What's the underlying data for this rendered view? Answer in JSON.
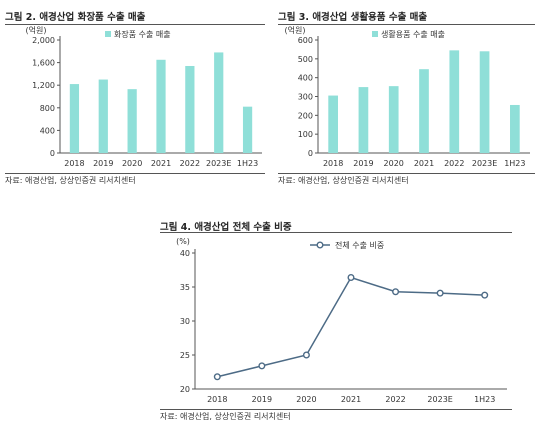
{
  "source_text": "자료: 애경산업, 상상인증권 리서치센터",
  "colors": {
    "bar": "#8fdfd8",
    "line": "#4d6b86",
    "axis": "#555555",
    "rule": "#555555"
  },
  "chart_data": [
    {
      "type": "bar",
      "figure_title": "그림 2. 애경산업 화장품 수출 매출",
      "unit_label": "(억원)",
      "legend": "화장품 수출 매출",
      "legend_position": "top-center",
      "grid": false,
      "categories": [
        "2018",
        "2019",
        "2020",
        "2021",
        "2022",
        "2023E",
        "1H23"
      ],
      "series": [
        {
          "name": "화장품 수출 매출",
          "values": [
            1220,
            1300,
            1130,
            1650,
            1540,
            1780,
            820
          ]
        }
      ],
      "ylim": [
        0,
        2000
      ],
      "yticks": [
        "0",
        "400",
        "800",
        "1,200",
        "1,600",
        "2,000"
      ]
    },
    {
      "type": "bar",
      "figure_title": "그림 3. 애경산업 생활용품 수출 매출",
      "unit_label": "(억원)",
      "legend": "생활용품 수출 매출",
      "legend_position": "top-center",
      "grid": false,
      "categories": [
        "2018",
        "2019",
        "2020",
        "2021",
        "2022",
        "2023E",
        "1H23"
      ],
      "series": [
        {
          "name": "생활용품 수출 매출",
          "values": [
            305,
            350,
            355,
            445,
            545,
            540,
            255
          ]
        }
      ],
      "ylim": [
        0,
        600
      ],
      "yticks": [
        "0",
        "100",
        "200",
        "300",
        "400",
        "500",
        "600"
      ]
    },
    {
      "type": "line",
      "figure_title": "그림 4. 애경산업 전체 수출 비중",
      "unit_label": "(%)",
      "legend": "전체 수출 비중",
      "legend_position": "top-center",
      "grid": false,
      "categories": [
        "2018",
        "2019",
        "2020",
        "2021",
        "2022",
        "2023E",
        "1H23"
      ],
      "series": [
        {
          "name": "전체 수출 비중",
          "values": [
            21.8,
            23.4,
            25.0,
            36.4,
            34.3,
            34.1,
            33.8
          ]
        }
      ],
      "ylim": [
        20,
        40
      ],
      "yticks": [
        "20",
        "25",
        "30",
        "35",
        "40"
      ]
    }
  ]
}
